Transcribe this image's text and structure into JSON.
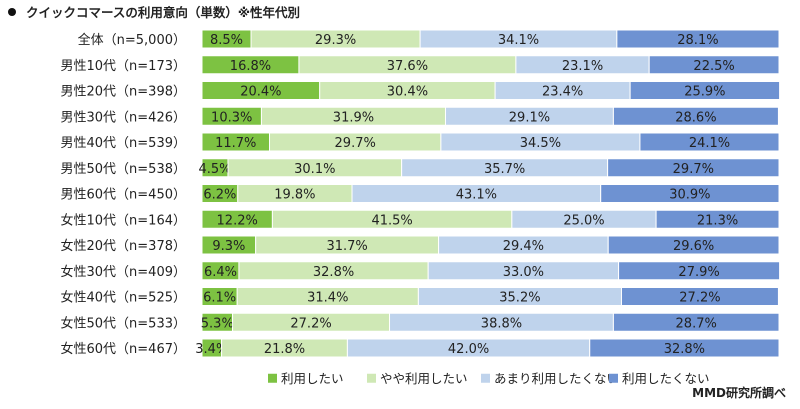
{
  "chart_data": {
    "type": "bar",
    "orientation": "horizontal",
    "stacked": true,
    "percent": true,
    "title": "クイックコマースの利用意向（単数）※性年代別",
    "source": "MMD研究所調べ",
    "categories": [
      "全体（n=5,000）",
      "男性10代（n=173）",
      "男性20代（n=398）",
      "男性30代（n=426）",
      "男性40代（n=539）",
      "男性50代（n=538）",
      "男性60代（n=450）",
      "女性10代（n=164）",
      "女性20代（n=378）",
      "女性30代（n=409）",
      "女性40代（n=525）",
      "女性50代（n=533）",
      "女性60代（n=467）"
    ],
    "series": [
      {
        "name": "利用したい",
        "color": "#7dc242",
        "values": [
          8.5,
          16.8,
          20.4,
          10.3,
          11.7,
          4.5,
          6.2,
          12.2,
          9.3,
          6.4,
          6.1,
          5.3,
          3.4
        ]
      },
      {
        "name": "やや利用したい",
        "color": "#cfe8b5",
        "values": [
          29.3,
          37.6,
          30.4,
          31.9,
          29.7,
          30.1,
          19.8,
          41.5,
          31.7,
          32.8,
          31.4,
          27.2,
          21.8
        ]
      },
      {
        "name": "あまり利用したくない",
        "color": "#bfd3ec",
        "values": [
          34.1,
          23.1,
          23.4,
          29.1,
          34.5,
          35.7,
          43.1,
          25.0,
          29.4,
          33.0,
          35.2,
          38.8,
          42.0
        ]
      },
      {
        "name": "利用したくない",
        "color": "#6e92d2",
        "values": [
          28.1,
          22.5,
          25.9,
          28.6,
          24.1,
          29.7,
          30.9,
          21.3,
          29.6,
          27.9,
          27.2,
          28.7,
          32.8
        ]
      }
    ],
    "xlim": [
      0,
      100
    ],
    "legend_position": "bottom",
    "grid": false
  }
}
